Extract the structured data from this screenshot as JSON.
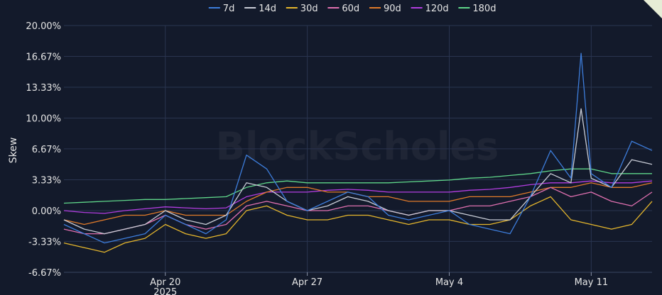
{
  "chart_data": {
    "type": "line",
    "title": "",
    "xlabel": "",
    "ylabel": "Skew",
    "watermark": "BlockScholes",
    "y_ticks": [
      "20.00%",
      "16.67%",
      "13.33%",
      "10.00%",
      "6.67%",
      "3.33%",
      "0.00%",
      "-3.33%",
      "-6.67%"
    ],
    "ylim": [
      -6.67,
      20.0
    ],
    "x_ticks": [
      {
        "label": "Apr 20",
        "sublabel": "2025",
        "date": "2025-04-20"
      },
      {
        "label": "Apr 27",
        "sublabel": "",
        "date": "2025-04-27"
      },
      {
        "label": "May 4",
        "sublabel": "",
        "date": "2025-05-04"
      },
      {
        "label": "May 11",
        "sublabel": "",
        "date": "2025-05-11"
      }
    ],
    "xlim": [
      "2025-04-15",
      "2025-05-14"
    ],
    "grid": true,
    "legend_position": "top-center",
    "series": [
      {
        "name": "7d",
        "color": "#3d7ddb",
        "x": [
          "2025-04-15",
          "2025-04-16",
          "2025-04-17",
          "2025-04-18",
          "2025-04-19",
          "2025-04-20",
          "2025-04-21",
          "2025-04-22",
          "2025-04-23",
          "2025-04-24",
          "2025-04-25",
          "2025-04-26",
          "2025-04-27",
          "2025-04-28",
          "2025-04-29",
          "2025-04-30",
          "2025-05-01",
          "2025-05-02",
          "2025-05-03",
          "2025-05-04",
          "2025-05-05",
          "2025-05-06",
          "2025-05-07",
          "2025-05-08",
          "2025-05-09",
          "2025-05-10",
          "2025-05-10T12:00",
          "2025-05-11",
          "2025-05-12",
          "2025-05-13",
          "2025-05-14"
        ],
        "y": [
          -1.5,
          -2.5,
          -3.5,
          -3.0,
          -2.5,
          -0.5,
          -1.5,
          -2.5,
          -1.0,
          6.0,
          4.5,
          1.0,
          0.0,
          1.0,
          2.0,
          1.5,
          -0.5,
          -1.0,
          -0.5,
          0.0,
          -1.5,
          -2.0,
          -2.5,
          1.5,
          6.5,
          3.5,
          17.0,
          4.0,
          2.5,
          7.5,
          6.5
        ]
      },
      {
        "name": "14d",
        "color": "#c8ccd6",
        "x": [
          "2025-04-15",
          "2025-04-16",
          "2025-04-17",
          "2025-04-18",
          "2025-04-19",
          "2025-04-20",
          "2025-04-21",
          "2025-04-22",
          "2025-04-23",
          "2025-04-24",
          "2025-04-25",
          "2025-04-26",
          "2025-04-27",
          "2025-04-28",
          "2025-04-29",
          "2025-04-30",
          "2025-05-01",
          "2025-05-02",
          "2025-05-03",
          "2025-05-04",
          "2025-05-05",
          "2025-05-06",
          "2025-05-07",
          "2025-05-08",
          "2025-05-09",
          "2025-05-10",
          "2025-05-10T12:00",
          "2025-05-11",
          "2025-05-12",
          "2025-05-13",
          "2025-05-14"
        ],
        "y": [
          -1.0,
          -2.0,
          -2.5,
          -2.0,
          -1.5,
          0.0,
          -1.0,
          -1.5,
          -0.5,
          3.0,
          2.5,
          1.0,
          0.0,
          0.5,
          1.5,
          1.0,
          0.0,
          -0.5,
          0.0,
          0.0,
          -0.5,
          -1.0,
          -1.0,
          1.5,
          4.0,
          3.0,
          11.0,
          3.5,
          2.5,
          5.5,
          5.0
        ]
      },
      {
        "name": "30d",
        "color": "#e5b62c",
        "x": [
          "2025-04-15",
          "2025-04-16",
          "2025-04-17",
          "2025-04-18",
          "2025-04-19",
          "2025-04-20",
          "2025-04-21",
          "2025-04-22",
          "2025-04-23",
          "2025-04-24",
          "2025-04-25",
          "2025-04-26",
          "2025-04-27",
          "2025-04-28",
          "2025-04-29",
          "2025-04-30",
          "2025-05-01",
          "2025-05-02",
          "2025-05-03",
          "2025-05-04",
          "2025-05-05",
          "2025-05-06",
          "2025-05-07",
          "2025-05-08",
          "2025-05-09",
          "2025-05-10",
          "2025-05-11",
          "2025-05-12",
          "2025-05-13",
          "2025-05-14"
        ],
        "y": [
          -3.5,
          -4.0,
          -4.5,
          -3.5,
          -3.0,
          -1.5,
          -2.5,
          -3.0,
          -2.5,
          0.0,
          0.5,
          -0.5,
          -1.0,
          -1.0,
          -0.5,
          -0.5,
          -1.0,
          -1.5,
          -1.0,
          -1.0,
          -1.5,
          -1.5,
          -1.0,
          0.5,
          1.5,
          -1.0,
          -1.5,
          -2.0,
          -1.5,
          1.0
        ]
      },
      {
        "name": "60d",
        "color": "#e070b0",
        "x": [
          "2025-04-15",
          "2025-04-16",
          "2025-04-17",
          "2025-04-18",
          "2025-04-19",
          "2025-04-20",
          "2025-04-21",
          "2025-04-22",
          "2025-04-23",
          "2025-04-24",
          "2025-04-25",
          "2025-04-26",
          "2025-04-27",
          "2025-04-28",
          "2025-04-29",
          "2025-04-30",
          "2025-05-01",
          "2025-05-02",
          "2025-05-03",
          "2025-05-04",
          "2025-05-05",
          "2025-05-06",
          "2025-05-07",
          "2025-05-08",
          "2025-05-09",
          "2025-05-10",
          "2025-05-11",
          "2025-05-12",
          "2025-05-13",
          "2025-05-14"
        ],
        "y": [
          -2.0,
          -2.5,
          -2.5,
          -2.0,
          -1.5,
          -0.5,
          -1.5,
          -2.0,
          -1.5,
          0.5,
          1.0,
          0.5,
          0.0,
          0.0,
          0.5,
          0.5,
          0.0,
          -0.5,
          0.0,
          0.0,
          0.5,
          0.5,
          1.0,
          1.5,
          2.5,
          1.5,
          2.0,
          1.0,
          0.5,
          2.0
        ]
      },
      {
        "name": "90d",
        "color": "#e07a2a",
        "x": [
          "2025-04-15",
          "2025-04-16",
          "2025-04-17",
          "2025-04-18",
          "2025-04-19",
          "2025-04-20",
          "2025-04-21",
          "2025-04-22",
          "2025-04-23",
          "2025-04-24",
          "2025-04-25",
          "2025-04-26",
          "2025-04-27",
          "2025-04-28",
          "2025-04-29",
          "2025-04-30",
          "2025-05-01",
          "2025-05-02",
          "2025-05-03",
          "2025-05-04",
          "2025-05-05",
          "2025-05-06",
          "2025-05-07",
          "2025-05-08",
          "2025-05-09",
          "2025-05-10",
          "2025-05-11",
          "2025-05-12",
          "2025-05-13",
          "2025-05-14"
        ],
        "y": [
          -1.0,
          -1.5,
          -1.0,
          -0.5,
          -0.5,
          0.0,
          -0.5,
          -0.5,
          -0.5,
          1.0,
          2.0,
          2.5,
          2.5,
          2.0,
          2.0,
          1.5,
          1.5,
          1.0,
          1.0,
          1.0,
          1.5,
          1.5,
          1.5,
          2.0,
          2.5,
          2.5,
          3.0,
          2.5,
          2.5,
          3.0
        ]
      },
      {
        "name": "120d",
        "color": "#b23de0",
        "x": [
          "2025-04-15",
          "2025-04-16",
          "2025-04-17",
          "2025-04-18",
          "2025-04-19",
          "2025-04-20",
          "2025-04-21",
          "2025-04-22",
          "2025-04-23",
          "2025-04-24",
          "2025-04-25",
          "2025-04-26",
          "2025-04-27",
          "2025-04-28",
          "2025-04-29",
          "2025-04-30",
          "2025-05-01",
          "2025-05-02",
          "2025-05-03",
          "2025-05-04",
          "2025-05-05",
          "2025-05-06",
          "2025-05-07",
          "2025-05-08",
          "2025-05-09",
          "2025-05-10",
          "2025-05-11",
          "2025-05-12",
          "2025-05-13",
          "2025-05-14"
        ],
        "y": [
          0.0,
          -0.2,
          -0.3,
          0.0,
          0.2,
          0.4,
          0.3,
          0.2,
          0.3,
          1.5,
          2.0,
          2.0,
          2.0,
          2.2,
          2.3,
          2.2,
          2.0,
          2.0,
          2.0,
          2.0,
          2.2,
          2.3,
          2.5,
          2.8,
          3.0,
          3.0,
          3.2,
          3.0,
          3.0,
          3.2
        ]
      },
      {
        "name": "180d",
        "color": "#5fd68a",
        "x": [
          "2025-04-15",
          "2025-04-16",
          "2025-04-17",
          "2025-04-18",
          "2025-04-19",
          "2025-04-20",
          "2025-04-21",
          "2025-04-22",
          "2025-04-23",
          "2025-04-24",
          "2025-04-25",
          "2025-04-26",
          "2025-04-27",
          "2025-04-28",
          "2025-04-29",
          "2025-04-30",
          "2025-05-01",
          "2025-05-02",
          "2025-05-03",
          "2025-05-04",
          "2025-05-05",
          "2025-05-06",
          "2025-05-07",
          "2025-05-08",
          "2025-05-09",
          "2025-05-10",
          "2025-05-11",
          "2025-05-12",
          "2025-05-13",
          "2025-05-14"
        ],
        "y": [
          0.8,
          0.9,
          1.0,
          1.1,
          1.2,
          1.2,
          1.3,
          1.4,
          1.5,
          2.5,
          3.0,
          3.2,
          3.0,
          3.0,
          3.0,
          3.0,
          3.0,
          3.1,
          3.2,
          3.3,
          3.5,
          3.6,
          3.8,
          4.0,
          4.3,
          4.5,
          4.5,
          4.0,
          4.0,
          4.0
        ]
      }
    ]
  }
}
